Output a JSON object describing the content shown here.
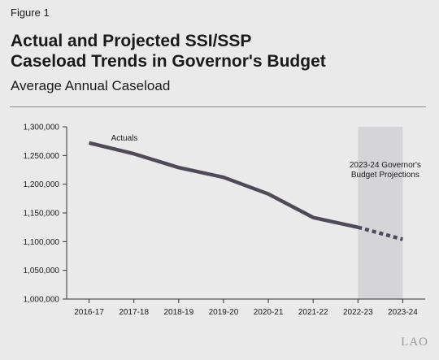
{
  "figure_label": "Figure 1",
  "title_line1": "Actual and Projected SSI/SSP",
  "title_line2": "Caseload Trends in Governor's Budget",
  "subtitle": "Average Annual Caseload",
  "logo_text": "LAO",
  "colors": {
    "line": "#4f4a5a",
    "shade": "#d5d5d7",
    "background": "#eaeaea"
  },
  "chart_data": {
    "type": "line",
    "categories": [
      "2016-17",
      "2017-18",
      "2018-19",
      "2019-20",
      "2020-21",
      "2021-22",
      "2022-23",
      "2023-24"
    ],
    "y_tick_labels": [
      "1,000,000",
      "1,050,000",
      "1,100,000",
      "1,150,000",
      "1,200,000",
      "1,250,000",
      "1,300,000"
    ],
    "ylim": [
      1000000,
      1300000
    ],
    "y_ticks": [
      1000000,
      1050000,
      1100000,
      1150000,
      1200000,
      1250000,
      1300000
    ],
    "series": [
      {
        "style": "solid",
        "values": [
          1272000,
          1253000,
          1229000,
          1212000,
          1183000,
          1142000,
          1125000,
          null
        ]
      },
      {
        "style": "dashed",
        "values": [
          null,
          null,
          null,
          null,
          null,
          null,
          1125000,
          1104000
        ]
      }
    ],
    "projection_start": "2022-23",
    "projection_end": "2023-24",
    "annotations": {
      "actuals": "Actuals",
      "projection_line1": "2023-24 Governor's",
      "projection_line2": "Budget Projections"
    },
    "grid": false
  }
}
